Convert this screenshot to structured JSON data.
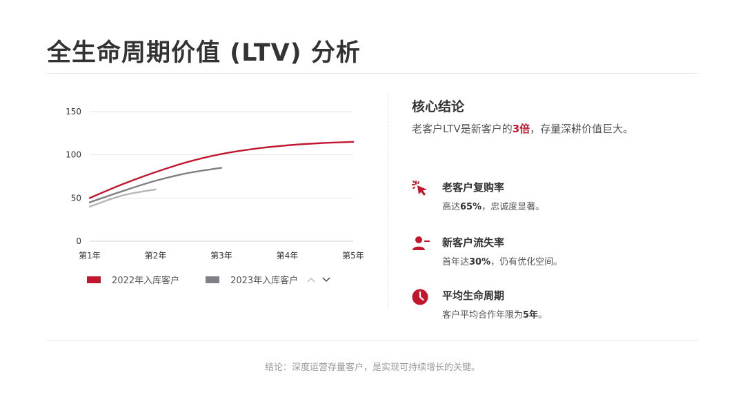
{
  "page": {
    "title": "全生命周期价值 (LTV) 分析",
    "footer": "结论：深度运营存量客户，是实现可持续增长的关键。"
  },
  "colors": {
    "accent": "#c0172f",
    "series_2022": "#c0172f",
    "series_2023": "#7f7f85",
    "series_light": "#b5b5b8",
    "grid": "#e6e6e6"
  },
  "chart_data": {
    "type": "line",
    "categories": [
      "第1年",
      "第2年",
      "第3年",
      "第4年",
      "第5年"
    ],
    "ylim": [
      0,
      150
    ],
    "yticks": [
      0,
      50,
      100,
      150
    ],
    "grid": true,
    "legend_position": "bottom",
    "series": [
      {
        "name": "2022年入库客户",
        "color": "#c0172f",
        "legend": true,
        "x": [
          1,
          1.5,
          2,
          2.5,
          3,
          3.5,
          4,
          4.5,
          5
        ],
        "values": [
          50,
          66,
          80,
          92,
          101,
          107,
          111,
          113.5,
          115
        ]
      },
      {
        "name": "2023年入库客户",
        "color": "#7f7f85",
        "legend": true,
        "x": [
          1,
          1.5,
          2,
          2.5,
          3
        ],
        "values": [
          45,
          58,
          70,
          79,
          85
        ]
      },
      {
        "color": "#b5b5b8",
        "legend": false,
        "x": [
          1,
          1.5,
          2
        ],
        "values": [
          40,
          53,
          60
        ]
      }
    ],
    "legend_nav": {
      "up": "chevron-up-icon",
      "down": "chevron-down-icon"
    }
  },
  "panel": {
    "title": "核心结论",
    "summary_before": "老客户LTV是新客户的",
    "summary_highlight": "3倍",
    "summary_after": "，存量深耕价值巨大。"
  },
  "stats": [
    {
      "icon": "click-cursor-icon",
      "title": "老客户复购率",
      "desc_before": "高达",
      "desc_bold": "65%",
      "desc_after": "，忠诚度显著。"
    },
    {
      "icon": "user-minus-icon",
      "title": "新客户流失率",
      "desc_before": "首年达",
      "desc_bold": "30%",
      "desc_after": "，仍有优化空间。"
    },
    {
      "icon": "clock-icon",
      "title": "平均生命周期",
      "desc_before": "客户平均合作年限为",
      "desc_bold": "5年",
      "desc_after": "。"
    }
  ]
}
